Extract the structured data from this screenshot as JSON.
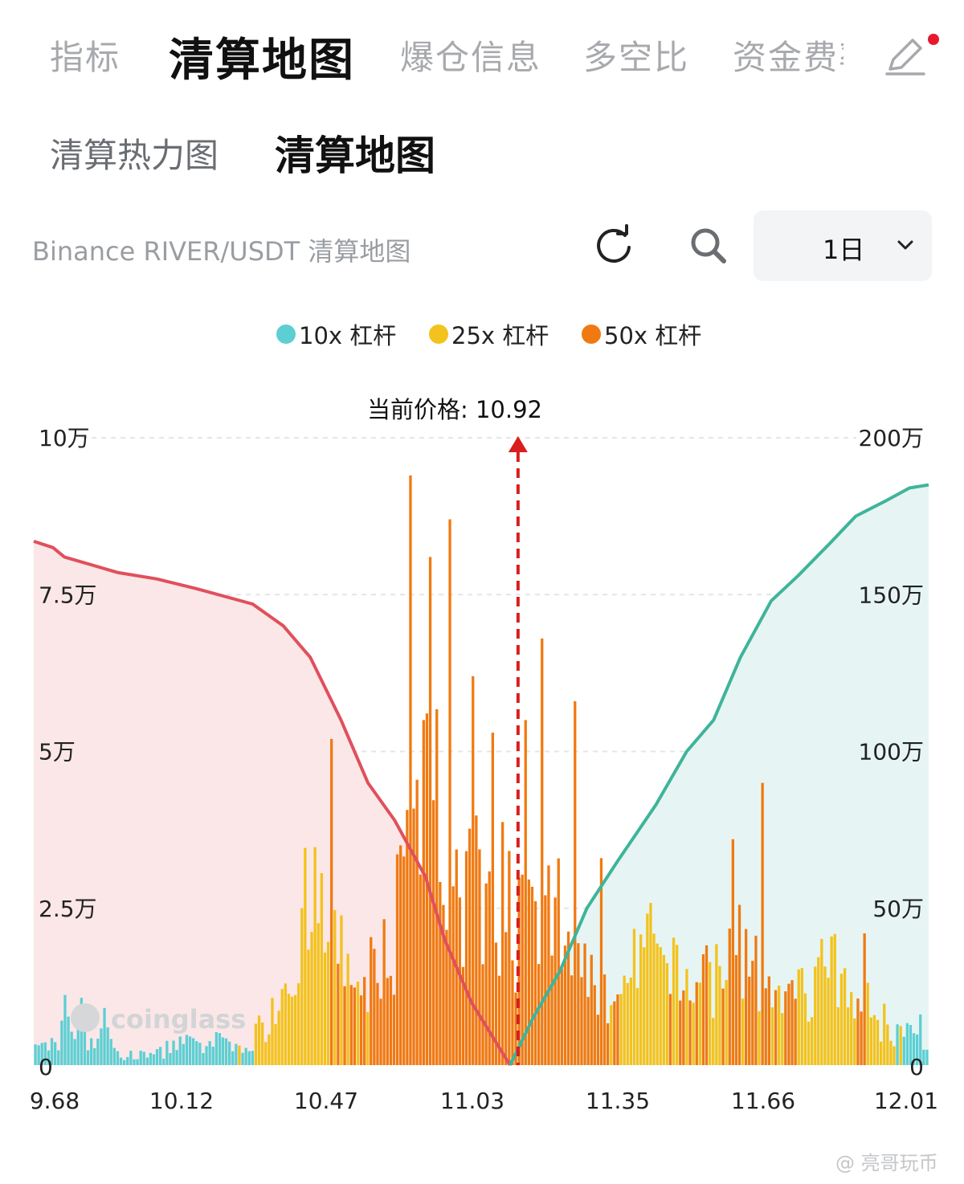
{
  "top_tabs": [
    {
      "label": "指标",
      "active": false
    },
    {
      "label": "清算地图",
      "active": true
    },
    {
      "label": "爆仓信息",
      "active": false
    },
    {
      "label": "多空比",
      "active": false
    },
    {
      "label": "资金费率",
      "active": false
    }
  ],
  "icons": {
    "edit": "pencil-icon",
    "refresh": "refresh-icon",
    "search": "search-icon",
    "chevron": "chevron-down-icon",
    "notification": "red-dot"
  },
  "sub_tabs": [
    {
      "label": "清算热力图",
      "active": false
    },
    {
      "label": "清算地图",
      "active": true
    }
  ],
  "toolbar": {
    "chart_title": "Binance RIVER/USDT 清算地图",
    "period": "1日"
  },
  "legend": [
    {
      "label": "10x 杠杆",
      "color": "#5ccfd3"
    },
    {
      "label": "25x 杠杆",
      "color": "#f3c21c"
    },
    {
      "label": "50x 杠杆",
      "color": "#f07a12"
    }
  ],
  "chart_data": {
    "type": "bar",
    "current_price_label": "当前价格: 10.92",
    "current_price": 10.92,
    "x_range": [
      9.68,
      12.01
    ],
    "x_ticks": [
      "9.68",
      "10.12",
      "10.47",
      "11.03",
      "11.35",
      "11.66",
      "12.01"
    ],
    "x_tick_values": [
      9.68,
      10.12,
      10.47,
      11.03,
      11.35,
      11.66,
      12.01
    ],
    "y_left_ticks": [
      "0",
      "2.5万",
      "5万",
      "7.5万",
      "10万"
    ],
    "y_left_values": [
      0,
      25000,
      50000,
      75000,
      100000
    ],
    "y_right_ticks": [
      "0",
      "50万",
      "100万",
      "150万",
      "200万"
    ],
    "y_right_values": [
      0,
      500000,
      1000000,
      1500000,
      2000000
    ],
    "ylim_left": [
      0,
      100000
    ],
    "ylim_right": [
      0,
      2000000
    ],
    "grid": true,
    "watermark": "coinglass",
    "bins": {
      "start": 9.68,
      "step": 0.00858,
      "count": 272,
      "anchors_10x": [
        [
          9.68,
          2500
        ],
        [
          9.74,
          4500
        ],
        [
          9.77,
          11500
        ],
        [
          9.79,
          3000
        ],
        [
          9.8,
          16000
        ],
        [
          9.82,
          3500
        ],
        [
          9.86,
          7000
        ],
        [
          9.9,
          1500
        ],
        [
          10.0,
          2000
        ],
        [
          10.05,
          4000
        ],
        [
          10.12,
          3000
        ],
        [
          10.18,
          4500
        ],
        [
          10.24,
          2000
        ],
        [
          10.3,
          1500
        ],
        [
          10.35,
          1500
        ],
        [
          11.2,
          800
        ],
        [
          11.7,
          1200
        ],
        [
          11.85,
          2500
        ],
        [
          11.9,
          3000
        ],
        [
          11.94,
          5500
        ],
        [
          11.97,
          12000
        ],
        [
          12.01,
          2000
        ]
      ],
      "anchors_25x": [
        [
          10.23,
          2500
        ],
        [
          10.27,
          6000
        ],
        [
          10.32,
          13000
        ],
        [
          10.38,
          23000
        ],
        [
          10.42,
          25000
        ],
        [
          10.45,
          19000
        ],
        [
          10.5,
          14000
        ],
        [
          10.55,
          9000
        ],
        [
          10.6,
          6000
        ],
        [
          10.65,
          4500
        ],
        [
          10.72,
          7000
        ],
        [
          10.8,
          5000
        ],
        [
          10.86,
          3500
        ],
        [
          10.92,
          3000
        ],
        [
          11.0,
          2500
        ],
        [
          11.1,
          3500
        ],
        [
          11.2,
          8000
        ],
        [
          11.27,
          19000
        ],
        [
          11.32,
          15000
        ],
        [
          11.38,
          12000
        ],
        [
          11.45,
          15000
        ],
        [
          11.52,
          9000
        ],
        [
          11.58,
          7500
        ],
        [
          11.64,
          9000
        ],
        [
          11.7,
          13000
        ],
        [
          11.75,
          16000
        ],
        [
          11.8,
          10000
        ],
        [
          11.87,
          9000
        ],
        [
          11.92,
          6000
        ]
      ],
      "anchors_50x": [
        [
          10.4,
          1500
        ],
        [
          10.47,
          12000
        ],
        [
          10.52,
          10000
        ],
        [
          10.6,
          23000
        ],
        [
          10.65,
          36000
        ],
        [
          10.7,
          53000
        ],
        [
          10.75,
          48000
        ],
        [
          10.8,
          33000
        ],
        [
          10.86,
          35000
        ],
        [
          10.92,
          28000
        ],
        [
          10.98,
          22000
        ],
        [
          11.03,
          28000
        ],
        [
          11.08,
          22000
        ],
        [
          11.15,
          15000
        ],
        [
          11.22,
          10000
        ],
        [
          11.27,
          5000
        ],
        [
          11.35,
          12000
        ],
        [
          11.42,
          13000
        ],
        [
          11.47,
          17000
        ],
        [
          11.52,
          21000
        ],
        [
          11.57,
          13000
        ],
        [
          11.62,
          17000
        ],
        [
          11.67,
          8000
        ],
        [
          11.72,
          4000
        ],
        [
          11.78,
          5000
        ],
        [
          11.82,
          8000
        ]
      ],
      "spikes": [
        [
          10.45,
          52000
        ],
        [
          10.66,
          94000
        ],
        [
          10.71,
          81000
        ],
        [
          10.76,
          87000
        ],
        [
          10.82,
          62000
        ],
        [
          10.87,
          53000
        ],
        [
          10.96,
          55000
        ],
        [
          11.0,
          68000
        ],
        [
          11.09,
          58000
        ],
        [
          11.16,
          33000
        ],
        [
          11.58,
          45000
        ],
        [
          11.5,
          36000
        ],
        [
          11.84,
          21000
        ]
      ]
    },
    "series_lines": [
      {
        "name": "short-side cumulative",
        "side": "left-of-price",
        "color": "#e0505c",
        "fill": "#fbe7e8",
        "points": [
          [
            9.68,
            1670000
          ],
          [
            9.73,
            1650000
          ],
          [
            9.76,
            1620000
          ],
          [
            9.9,
            1570000
          ],
          [
            10.0,
            1550000
          ],
          [
            10.1,
            1520000
          ],
          [
            10.25,
            1470000
          ],
          [
            10.33,
            1400000
          ],
          [
            10.4,
            1300000
          ],
          [
            10.48,
            1100000
          ],
          [
            10.55,
            900000
          ],
          [
            10.62,
            780000
          ],
          [
            10.7,
            600000
          ],
          [
            10.75,
            400000
          ],
          [
            10.82,
            200000
          ],
          [
            10.88,
            80000
          ],
          [
            10.92,
            0
          ]
        ]
      },
      {
        "name": "long-side cumulative",
        "side": "right-of-price",
        "color": "#3fb49a",
        "fill": "#e6f5f3",
        "points": [
          [
            10.92,
            0
          ],
          [
            10.98,
            150000
          ],
          [
            11.05,
            300000
          ],
          [
            11.12,
            500000
          ],
          [
            11.2,
            650000
          ],
          [
            11.3,
            830000
          ],
          [
            11.38,
            1000000
          ],
          [
            11.45,
            1100000
          ],
          [
            11.52,
            1300000
          ],
          [
            11.6,
            1480000
          ],
          [
            11.67,
            1560000
          ],
          [
            11.75,
            1660000
          ],
          [
            11.82,
            1750000
          ],
          [
            11.9,
            1800000
          ],
          [
            11.96,
            1840000
          ],
          [
            12.01,
            1850000
          ]
        ]
      }
    ]
  },
  "watermark_text": "@ 亮哥玩币"
}
